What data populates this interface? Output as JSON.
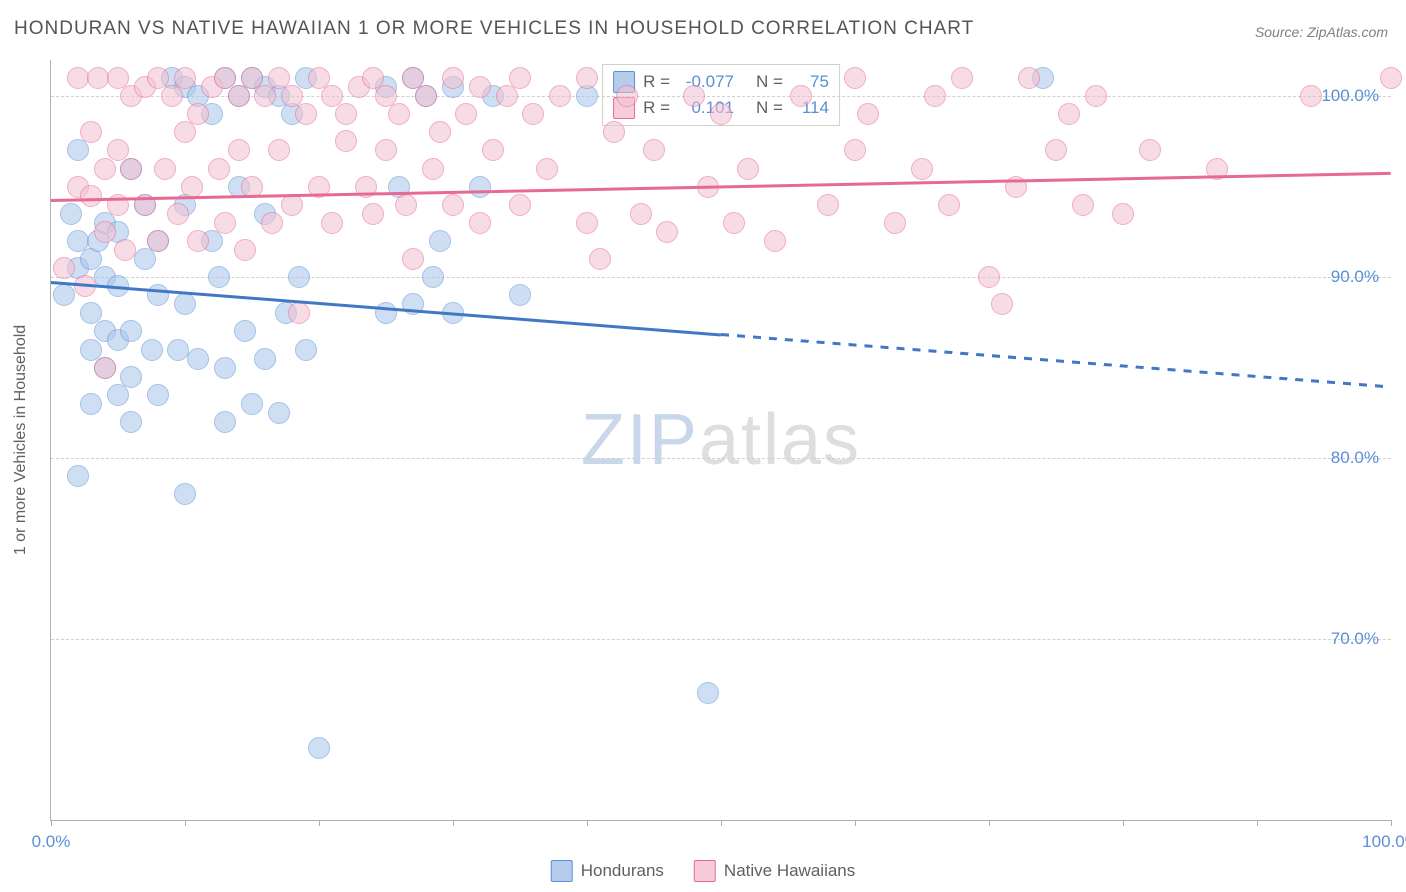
{
  "title": "HONDURAN VS NATIVE HAWAIIAN 1 OR MORE VEHICLES IN HOUSEHOLD CORRELATION CHART",
  "source": "Source: ZipAtlas.com",
  "watermark": {
    "part1": "ZIP",
    "part2": "atlas"
  },
  "chart": {
    "type": "scatter",
    "background_color": "#ffffff",
    "grid_color": "#d0d0d0",
    "axis_color": "#b0b0b0",
    "y_axis_title": "1 or more Vehicles in Household",
    "label_fontsize": 16,
    "tick_fontsize": 17,
    "tick_color": "#5a8fd6",
    "xlim": [
      0,
      100
    ],
    "ylim": [
      60,
      102
    ],
    "y_ticks": [
      70,
      80,
      90,
      100
    ],
    "y_tick_labels": [
      "70.0%",
      "80.0%",
      "90.0%",
      "100.0%"
    ],
    "x_ticks": [
      0,
      10,
      20,
      30,
      40,
      50,
      60,
      70,
      80,
      90,
      100
    ],
    "x_tick_labels": {
      "0": "0.0%",
      "100": "100.0%"
    },
    "marker_radius": 10,
    "marker_opacity": 0.55,
    "series": [
      {
        "name": "Hondurans",
        "color_fill": "#a9c6eb",
        "color_stroke": "#5a8fd6",
        "R": -0.077,
        "N": 75,
        "trend": {
          "start": [
            0,
            89.8
          ],
          "end": [
            100,
            84.0
          ],
          "solid_until_x": 50,
          "color": "#4178c6",
          "width": 2.5
        },
        "points": [
          [
            1,
            89
          ],
          [
            2,
            92
          ],
          [
            2,
            90.5
          ],
          [
            1.5,
            93.5
          ],
          [
            2,
            79
          ],
          [
            3,
            88
          ],
          [
            3,
            91
          ],
          [
            3,
            86
          ],
          [
            3.5,
            92
          ],
          [
            3,
            83
          ],
          [
            4,
            93
          ],
          [
            4,
            90
          ],
          [
            4,
            87
          ],
          [
            4,
            85
          ],
          [
            5,
            92.5
          ],
          [
            5,
            89.5
          ],
          [
            5,
            86.5
          ],
          [
            5,
            83.5
          ],
          [
            2,
            97
          ],
          [
            6,
            96
          ],
          [
            6,
            87
          ],
          [
            6,
            82
          ],
          [
            6,
            84.5
          ],
          [
            7,
            94
          ],
          [
            7,
            91
          ],
          [
            7.5,
            86
          ],
          [
            8,
            92
          ],
          [
            8,
            89
          ],
          [
            8,
            83.5
          ],
          [
            9,
            101
          ],
          [
            9.5,
            86
          ],
          [
            10,
            100.5
          ],
          [
            10,
            94
          ],
          [
            10,
            88.5
          ],
          [
            10,
            78
          ],
          [
            11,
            100
          ],
          [
            11,
            85.5
          ],
          [
            12,
            99
          ],
          [
            12,
            92
          ],
          [
            12.5,
            90
          ],
          [
            13,
            101
          ],
          [
            13,
            85
          ],
          [
            13,
            82
          ],
          [
            14,
            100
          ],
          [
            14,
            95
          ],
          [
            14.5,
            87
          ],
          [
            15,
            101
          ],
          [
            15,
            83
          ],
          [
            16,
            100.5
          ],
          [
            16,
            93.5
          ],
          [
            16,
            85.5
          ],
          [
            17,
            100
          ],
          [
            17.5,
            88
          ],
          [
            17,
            82.5
          ],
          [
            18,
            99
          ],
          [
            18.5,
            90
          ],
          [
            19,
            101
          ],
          [
            19,
            86
          ],
          [
            20,
            64
          ],
          [
            25,
            100.5
          ],
          [
            25,
            88
          ],
          [
            26,
            95
          ],
          [
            27,
            101
          ],
          [
            27,
            88.5
          ],
          [
            28,
            100
          ],
          [
            28.5,
            90
          ],
          [
            29,
            92
          ],
          [
            30,
            100.5
          ],
          [
            30,
            88
          ],
          [
            32,
            95
          ],
          [
            33,
            100
          ],
          [
            35,
            89
          ],
          [
            40,
            100
          ],
          [
            49,
            67
          ],
          [
            74,
            101
          ]
        ]
      },
      {
        "name": "Native Hawaiians",
        "color_fill": "#f3c1d0",
        "color_stroke": "#e76a94",
        "R": 0.101,
        "N": 114,
        "trend": {
          "start": [
            0,
            94.3
          ],
          "end": [
            100,
            95.8
          ],
          "solid_until_x": 100,
          "color": "#e76a94",
          "width": 2.5
        },
        "points": [
          [
            1,
            90.5
          ],
          [
            2,
            95
          ],
          [
            2,
            101
          ],
          [
            2.5,
            89.5
          ],
          [
            3,
            94.5
          ],
          [
            3,
            98
          ],
          [
            3.5,
            101
          ],
          [
            4,
            96
          ],
          [
            4,
            92.5
          ],
          [
            4,
            85
          ],
          [
            5,
            101
          ],
          [
            5,
            97
          ],
          [
            5,
            94
          ],
          [
            5.5,
            91.5
          ],
          [
            6,
            100
          ],
          [
            6,
            96
          ],
          [
            7,
            100.5
          ],
          [
            7,
            94
          ],
          [
            8,
            101
          ],
          [
            8.5,
            96
          ],
          [
            8,
            92
          ],
          [
            9,
            100
          ],
          [
            9.5,
            93.5
          ],
          [
            10,
            101
          ],
          [
            10,
            98
          ],
          [
            10.5,
            95
          ],
          [
            11,
            99
          ],
          [
            11,
            92
          ],
          [
            12,
            100.5
          ],
          [
            12.5,
            96
          ],
          [
            13,
            101
          ],
          [
            13,
            93
          ],
          [
            14,
            100
          ],
          [
            14,
            97
          ],
          [
            14.5,
            91.5
          ],
          [
            15,
            101
          ],
          [
            15,
            95
          ],
          [
            16,
            100
          ],
          [
            16.5,
            93
          ],
          [
            17,
            101
          ],
          [
            17,
            97
          ],
          [
            18,
            100
          ],
          [
            18,
            94
          ],
          [
            18.5,
            88
          ],
          [
            19,
            99
          ],
          [
            20,
            101
          ],
          [
            20,
            95
          ],
          [
            21,
            100
          ],
          [
            21,
            93
          ],
          [
            22,
            99
          ],
          [
            22,
            97.5
          ],
          [
            23,
            100.5
          ],
          [
            23.5,
            95
          ],
          [
            24,
            101
          ],
          [
            24,
            93.5
          ],
          [
            25,
            100
          ],
          [
            25,
            97
          ],
          [
            26,
            99
          ],
          [
            26.5,
            94
          ],
          [
            27,
            101
          ],
          [
            27,
            91
          ],
          [
            28,
            100
          ],
          [
            28.5,
            96
          ],
          [
            29,
            98
          ],
          [
            30,
            101
          ],
          [
            30,
            94
          ],
          [
            31,
            99
          ],
          [
            32,
            100.5
          ],
          [
            32,
            93
          ],
          [
            33,
            97
          ],
          [
            34,
            100
          ],
          [
            35,
            101
          ],
          [
            35,
            94
          ],
          [
            36,
            99
          ],
          [
            37,
            96
          ],
          [
            38,
            100
          ],
          [
            40,
            93
          ],
          [
            40,
            101
          ],
          [
            41,
            91
          ],
          [
            42,
            98
          ],
          [
            43,
            100
          ],
          [
            44,
            93.5
          ],
          [
            45,
            97
          ],
          [
            46,
            92.5
          ],
          [
            48,
            100
          ],
          [
            49,
            95
          ],
          [
            50,
            99
          ],
          [
            51,
            93
          ],
          [
            52,
            96
          ],
          [
            54,
            92
          ],
          [
            56,
            100
          ],
          [
            58,
            94
          ],
          [
            60,
            101
          ],
          [
            60,
            97
          ],
          [
            61,
            99
          ],
          [
            63,
            93
          ],
          [
            65,
            96
          ],
          [
            66,
            100
          ],
          [
            67,
            94
          ],
          [
            68,
            101
          ],
          [
            70,
            90
          ],
          [
            71,
            88.5
          ],
          [
            72,
            95
          ],
          [
            73,
            101
          ],
          [
            75,
            97
          ],
          [
            76,
            99
          ],
          [
            77,
            94
          ],
          [
            78,
            100
          ],
          [
            80,
            93.5
          ],
          [
            82,
            97
          ],
          [
            87,
            96
          ],
          [
            94,
            100
          ],
          [
            100,
            101
          ]
        ]
      }
    ],
    "legend_top": {
      "rows": [
        {
          "swatch": "blue",
          "r_label": "R =",
          "r_value": "-0.077",
          "n_label": "N =",
          "n_value": "75"
        },
        {
          "swatch": "pink",
          "r_label": "R =",
          "r_value": "0.101",
          "n_label": "N =",
          "n_value": "114"
        }
      ]
    },
    "legend_bottom": [
      {
        "swatch": "blue",
        "label": "Hondurans"
      },
      {
        "swatch": "pink",
        "label": "Native Hawaiians"
      }
    ]
  }
}
